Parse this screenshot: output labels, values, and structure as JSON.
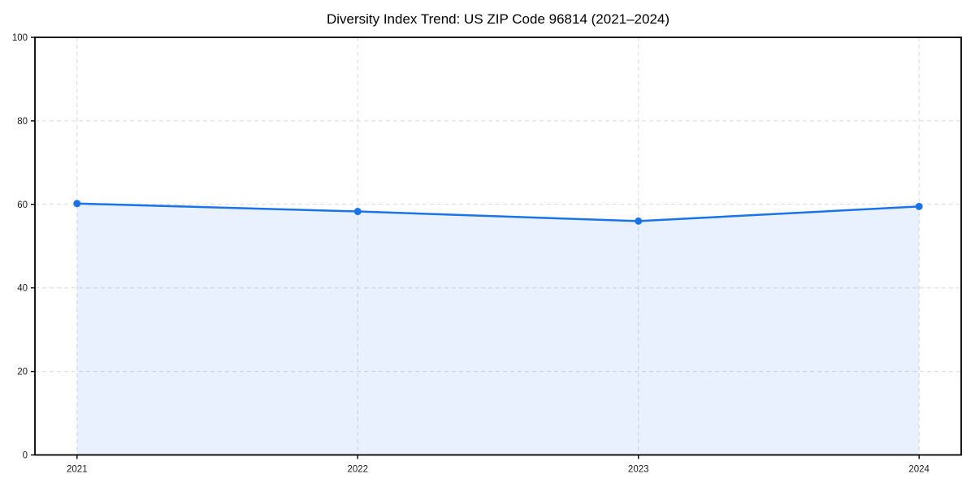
{
  "chart_data": {
    "type": "line",
    "title": "Diversity Index Trend: US ZIP Code 96814 (2021–2024)",
    "categories": [
      "2021",
      "2022",
      "2023",
      "2024"
    ],
    "series": [
      {
        "name": "Diversity Index",
        "values": [
          60.2,
          58.3,
          56.0,
          59.5
        ]
      }
    ],
    "xlabel": "",
    "ylabel": "",
    "ylim": [
      0,
      100
    ],
    "yticks": [
      0,
      20,
      40,
      60,
      80,
      100
    ],
    "grid": "dashed-both-axes",
    "legend_position": "none",
    "area_fill": true,
    "colors": {
      "line": "#1a73e8",
      "marker": "#1a73e8",
      "fill": "rgba(26,115,232,0.10)",
      "grid": "#d9d9d9",
      "spine": "#000000",
      "tick": "#000000",
      "tick_label": "#1a1a1a",
      "title": "#000000",
      "background": "#ffffff"
    }
  }
}
